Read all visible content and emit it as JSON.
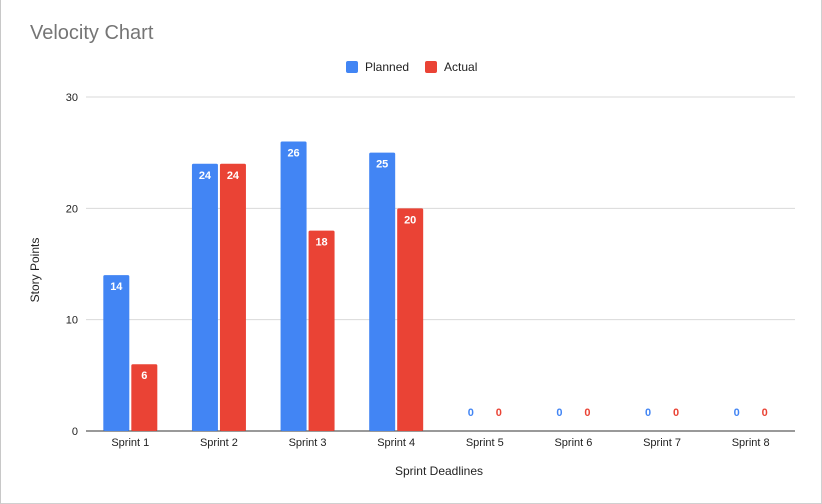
{
  "chart_data": {
    "type": "bar",
    "title": "Velocity Chart",
    "xlabel": "Sprint Deadlines",
    "ylabel": "Story Points",
    "ylim": [
      0,
      30
    ],
    "yticks": [
      0,
      10,
      20,
      30
    ],
    "grid": true,
    "legend_position": "top",
    "categories": [
      "Sprint 1",
      "Sprint 2",
      "Sprint 3",
      "Sprint 4",
      "Sprint 5",
      "Sprint 6",
      "Sprint 7",
      "Sprint 8"
    ],
    "series": [
      {
        "name": "Planned",
        "color": "#4285f4",
        "values": [
          14,
          24,
          26,
          25,
          0,
          0,
          0,
          0
        ]
      },
      {
        "name": "Actual",
        "color": "#ea4335",
        "values": [
          6,
          24,
          18,
          20,
          0,
          0,
          0,
          0
        ]
      }
    ]
  }
}
